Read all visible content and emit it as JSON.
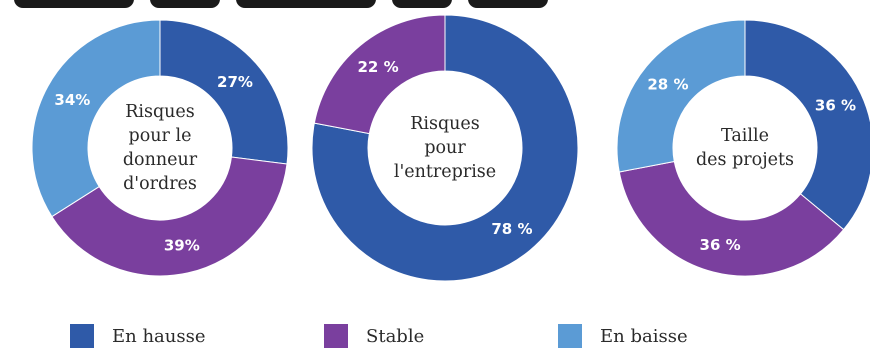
{
  "colors": {
    "en_hausse": "#2f5aa8",
    "stable": "#7a3f9e",
    "en_baisse": "#5b9bd5",
    "text": "#2a2a2a"
  },
  "legend": [
    {
      "label": "En hausse",
      "color": "#2f5aa8"
    },
    {
      "label": "Stable",
      "color": "#7a3f9e"
    },
    {
      "label": "En baisse",
      "color": "#5b9bd5"
    }
  ],
  "chart_data": [
    {
      "type": "pie",
      "center_label": [
        "Risques",
        "pour le",
        "donneur",
        "d'ordres"
      ],
      "slices": [
        {
          "category": "En hausse",
          "value": 27,
          "label": "27%"
        },
        {
          "category": "Stable",
          "value": 39,
          "label": "39%"
        },
        {
          "category": "En baisse",
          "value": 34,
          "label": "34%"
        }
      ]
    },
    {
      "type": "pie",
      "center_label": [
        "Risques",
        "pour",
        "l'entreprise"
      ],
      "slices": [
        {
          "category": "En hausse",
          "value": 78,
          "label": "78 %"
        },
        {
          "category": "Stable",
          "value": 22,
          "label": "22 %"
        }
      ]
    },
    {
      "type": "pie",
      "center_label": [
        "Taille",
        "des projets"
      ],
      "slices": [
        {
          "category": "En hausse",
          "value": 36,
          "label": "36 %"
        },
        {
          "category": "Stable",
          "value": 36,
          "label": "36 %"
        },
        {
          "category": "En baisse",
          "value": 28,
          "label": "28 %"
        }
      ]
    }
  ]
}
